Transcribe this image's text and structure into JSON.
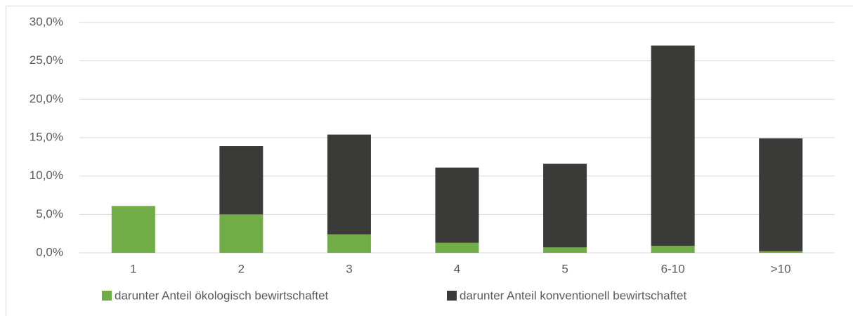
{
  "chart_data": {
    "type": "stacked_bar",
    "categories": [
      "1",
      "2",
      "3",
      "4",
      "5",
      "6-10",
      ">10"
    ],
    "series": [
      {
        "name": "darunter Anteil ökologisch bewirtschaftet",
        "color": "#70ad47",
        "values": [
          6.1,
          5.0,
          2.4,
          1.3,
          0.7,
          0.9,
          0.2
        ]
      },
      {
        "name": "darunter Anteil konventionell bewirtschaftet",
        "color": "#3a3a38",
        "values": [
          0,
          8.9,
          13.0,
          9.8,
          10.9,
          26.1,
          14.7
        ]
      }
    ],
    "ylim": [
      0,
      30
    ],
    "yticks": [
      {
        "value": 0,
        "label": "0,0%"
      },
      {
        "value": 5,
        "label": "5,0%"
      },
      {
        "value": 10,
        "label": "10,0%"
      },
      {
        "value": 15,
        "label": "15,0%"
      },
      {
        "value": 20,
        "label": "20,0%"
      },
      {
        "value": 25,
        "label": "25,0%"
      },
      {
        "value": 30,
        "label": "30,0%"
      }
    ],
    "grid": true,
    "legend": "bottom"
  }
}
